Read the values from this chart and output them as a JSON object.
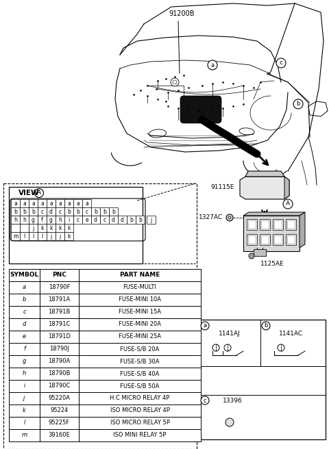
{
  "bg_color": "#ffffff",
  "table_data": [
    [
      "SYMBOL",
      "PNC",
      "PART NAME"
    ],
    [
      "a",
      "18790F",
      "FUSE-MULTI"
    ],
    [
      "b",
      "18791A",
      "FUSE-MINI 10A"
    ],
    [
      "c",
      "18791B",
      "FUSE-MINI 15A"
    ],
    [
      "d",
      "18791C",
      "FUSE-MINI 20A"
    ],
    [
      "e",
      "18791D",
      "FUSE-MINI 25A"
    ],
    [
      "f",
      "18790J",
      "FUSE-S/B 20A"
    ],
    [
      "g",
      "18790A",
      "FUSE-S/B 30A"
    ],
    [
      "h",
      "18790B",
      "FUSE-S/B 40A"
    ],
    [
      "i",
      "18790C",
      "FUSE-S/B 50A"
    ],
    [
      "j",
      "95220A",
      "H.C MICRO RELAY 4P"
    ],
    [
      "k",
      "95224",
      "ISO MICRO RELAY 4P"
    ],
    [
      "l",
      "95225F",
      "ISO MICRO RELAY 5P"
    ],
    [
      "m",
      "39160E",
      "ISO MINI RELAY 5P"
    ]
  ],
  "view_a_row1": [
    "a",
    "a",
    "a",
    "a",
    "a",
    "a",
    "a",
    "a",
    "a"
  ],
  "view_a_row2": [
    "b",
    "b",
    "b",
    "c",
    "d",
    "c",
    "b",
    "b",
    "c",
    "b",
    "b",
    "b"
  ],
  "view_a_row3": [
    "h",
    "h",
    "g",
    "f",
    "g",
    "h",
    "i",
    "c",
    "e",
    "d",
    "c",
    "d",
    "d",
    "b",
    "b"
  ],
  "view_a_row3b": [
    "j"
  ],
  "view_a_row4": [
    "",
    "",
    "j",
    "k",
    "k",
    "k",
    "k"
  ],
  "view_a_row5": [
    "m",
    "l",
    "l",
    "l",
    "j",
    "j",
    "k"
  ],
  "label_91200B": "91200B",
  "label_91115E": "91115E",
  "label_A": "A",
  "label_1327AC": "1327AC",
  "label_1125AE": "1125AE",
  "label_1141AJ": "1141AJ",
  "label_1141AC": "1141AC",
  "label_13396": "13396"
}
